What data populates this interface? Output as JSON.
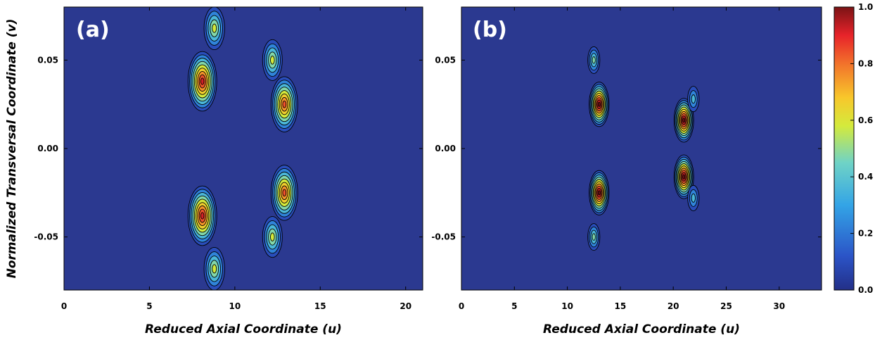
{
  "colors": {
    "background": "#2b3990",
    "contour_line": "#000000",
    "colormap": [
      "#232f88",
      "#2b54c7",
      "#33a4e6",
      "#6fd3c6",
      "#d4ea3c",
      "#f8c72b",
      "#f2722b",
      "#e7232a",
      "#7b1315"
    ]
  },
  "chart_data": [
    {
      "type": "heatmap",
      "panel_label": "(a)",
      "xlabel": "Reduced Axial Coordinate (u)",
      "ylabel": "Normalized Transversal Coordinate (v)",
      "xlim": [
        0,
        21
      ],
      "ylim": [
        -0.08,
        0.08
      ],
      "xticks": [
        0,
        5,
        10,
        15,
        20
      ],
      "xtick_labels": [
        "0",
        "5",
        "10",
        "15",
        "20"
      ],
      "yticks": [
        0.05,
        0.0,
        -0.05
      ],
      "ytick_labels": [
        "0.05",
        "0.00",
        "-0.05"
      ],
      "contours": true,
      "peaks": [
        {
          "u": 8.1,
          "v": 0.038,
          "value": 0.93
        },
        {
          "u": 8.1,
          "v": -0.038,
          "value": 0.93
        },
        {
          "u": 12.9,
          "v": 0.025,
          "value": 0.82
        },
        {
          "u": 12.9,
          "v": -0.025,
          "value": 0.82
        },
        {
          "u": 8.8,
          "v": 0.068,
          "value": 0.5
        },
        {
          "u": 8.8,
          "v": -0.068,
          "value": 0.5
        },
        {
          "u": 12.2,
          "v": 0.05,
          "value": 0.45
        },
        {
          "u": 12.2,
          "v": -0.05,
          "value": 0.45
        }
      ]
    },
    {
      "type": "heatmap",
      "panel_label": "(b)",
      "xlabel": "Reduced Axial Coordinate (u)",
      "ylabel": "",
      "xlim": [
        0,
        34
      ],
      "ylim": [
        -0.08,
        0.08
      ],
      "xticks": [
        0,
        5,
        10,
        15,
        20,
        25,
        30
      ],
      "xtick_labels": [
        "0",
        "5",
        "10",
        "15",
        "20",
        "25",
        "30"
      ],
      "yticks": [
        0.05,
        0.0,
        -0.05
      ],
      "ytick_labels": [
        "0.05",
        "0.00",
        "-0.05"
      ],
      "contours": true,
      "peaks": [
        {
          "u": 13.0,
          "v": 0.025,
          "value": 0.97
        },
        {
          "u": 13.0,
          "v": -0.025,
          "value": 0.97
        },
        {
          "u": 21.0,
          "v": 0.016,
          "value": 0.95
        },
        {
          "u": 21.0,
          "v": -0.016,
          "value": 0.95
        },
        {
          "u": 12.5,
          "v": 0.05,
          "value": 0.35
        },
        {
          "u": 12.5,
          "v": -0.05,
          "value": 0.35
        },
        {
          "u": 21.9,
          "v": 0.028,
          "value": 0.3
        },
        {
          "u": 21.9,
          "v": -0.028,
          "value": 0.3
        }
      ]
    }
  ],
  "colorbar": {
    "range": [
      0.0,
      1.0
    ],
    "ticks": [
      1.0,
      0.8,
      0.6,
      0.4,
      0.2,
      0.0
    ],
    "tick_labels": [
      "1.0",
      "0.8",
      "0.6",
      "0.4",
      "0.2",
      "0.0"
    ]
  }
}
